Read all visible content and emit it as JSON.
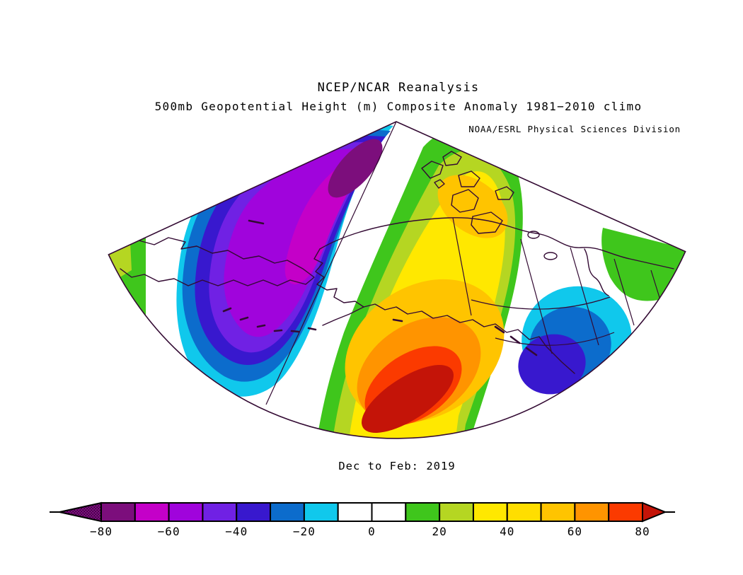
{
  "header": {
    "line1": "NCEP/NCAR Reanalysis",
    "line2": "500mb Geopotential Height (m) Composite Anomaly 1981−2010 climo",
    "credit": "NOAA/ESRL Physical Sciences Division"
  },
  "caption": "Dec to Feb: 2019",
  "colorbar": {
    "units": "m",
    "ticks": [
      "−80",
      "−60",
      "−40",
      "−20",
      "0",
      "20",
      "40",
      "60",
      "80"
    ],
    "segments": [
      {
        "from": -80,
        "to": -70,
        "color": "#7C0E7C"
      },
      {
        "from": -70,
        "to": -60,
        "color": "#C400C8"
      },
      {
        "from": -60,
        "to": -50,
        "color": "#A004DC"
      },
      {
        "from": -50,
        "to": -40,
        "color": "#7021E4"
      },
      {
        "from": -40,
        "to": -30,
        "color": "#3818CE"
      },
      {
        "from": -30,
        "to": -20,
        "color": "#0C6CCC"
      },
      {
        "from": -20,
        "to": -10,
        "color": "#10C8EC"
      },
      {
        "from": -10,
        "to": 0,
        "color": "#FFFFFF"
      },
      {
        "from": 0,
        "to": 10,
        "color": "#FFFFFF"
      },
      {
        "from": 10,
        "to": 20,
        "color": "#3FC61C"
      },
      {
        "from": 20,
        "to": 30,
        "color": "#B5D622"
      },
      {
        "from": 30,
        "to": 40,
        "color": "#FFE800"
      },
      {
        "from": 40,
        "to": 50,
        "color": "#FFDE00"
      },
      {
        "from": 50,
        "to": 60,
        "color": "#FFC400"
      },
      {
        "from": 60,
        "to": 70,
        "color": "#FF9400"
      },
      {
        "from": 70,
        "to": 80,
        "color": "#FB3A00"
      }
    ],
    "arrow_left_color": "#7C0E7C",
    "arrow_left_style": "stippled",
    "arrow_right_color": "#C41408"
  },
  "chart_data": {
    "type": "filled-contour-map",
    "source": "NCEP/NCAR Reanalysis",
    "variable": "500mb Geopotential Height Composite Anomaly",
    "units": "m",
    "climatology": "1981−2010",
    "period": "Dec to Feb: 2019",
    "projection": "polar-stereographic sector, North Pole at apex, bounded by two meridians and a latitude arc",
    "region": "Northeast Siberia, Bering Sea, Alaska, northwestern Canada, North Pacific",
    "contour_interval": 10,
    "levels": [
      -80,
      -70,
      -60,
      -50,
      -40,
      -30,
      -20,
      -10,
      10,
      20,
      30,
      40,
      50,
      60,
      70,
      80
    ],
    "features": [
      {
        "feature": "primary negative anomaly center",
        "location": "Chukotka / East Siberian Arctic, elongated toward the pole",
        "value_estimate_m": -80
      },
      {
        "feature": "primary positive anomaly center",
        "location": "Gulf of Alaska / North Pacific south of the Alaska Peninsula",
        "value_estimate_m": 85
      },
      {
        "feature": "secondary positive lobe",
        "location": "Canadian Arctic Archipelago",
        "value_estimate_m": 50
      },
      {
        "feature": "secondary negative center",
        "location": "British Columbia / western Canada coast",
        "value_estimate_m": -45
      },
      {
        "feature": "near-zero white band",
        "location": "diagonal band between the Siberian low and Pacific high, and over Yukon–Hudson Bay corridor",
        "value_estimate_m": 0
      },
      {
        "feature": "weak positive band",
        "location": "far western corner (Siberia) and far eastern corner (central Canada)",
        "value_estimate_m": 20
      }
    ],
    "legend_position": "bottom horizontal colorbar with out-of-range arrows"
  }
}
